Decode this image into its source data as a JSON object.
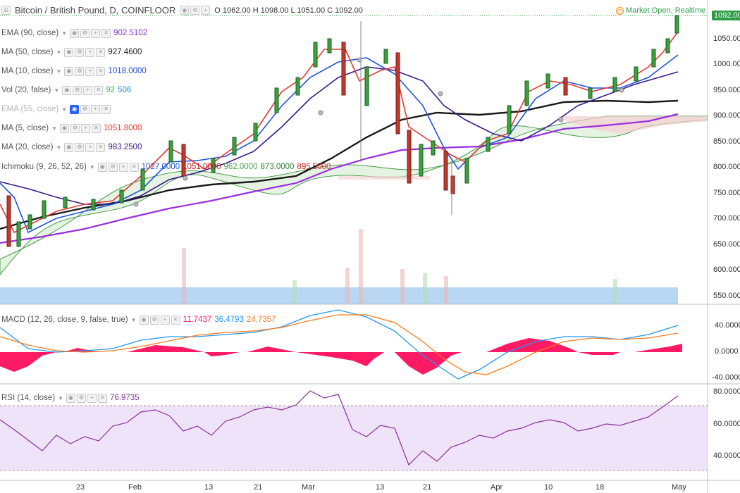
{
  "header": {
    "title": "Bitcoin / British Pound, D, COINFLOOR",
    "ohlc": "O 1062.00 H 1098.00 L 1051.00 C 1092.00"
  },
  "market_status": "Market Open, Realtime",
  "last_price": "1092.00",
  "indicators": [
    {
      "label": "EMA (90, close)",
      "value": "902.5102",
      "color": "#8b2fd6"
    },
    {
      "label": "MA (50, close)",
      "value": "927.4600",
      "color": "#222222"
    },
    {
      "label": "MA (10, close)",
      "value": "1018.0000",
      "color": "#1d4fd6"
    },
    {
      "label": "Vol (20, false)",
      "value": "92",
      "value2": "506",
      "color": "#4caf50",
      "color2": "#1e88e5"
    },
    {
      "label": "EMA (55, close)",
      "value": "",
      "color": "#aaaaaa"
    },
    {
      "label": "MA (5, close)",
      "value": "1051.8000",
      "color": "#e53935"
    },
    {
      "label": "MA (20, close)",
      "value": "983.2500",
      "color": "#3a1a8c"
    },
    {
      "label": "Ichimoku (9, 26, 52, 26)",
      "value": "1027.0000",
      "value2": "1051.0000",
      "value3": "962.0000",
      "value4": "873.0000",
      "value5": "895.5000"
    }
  ],
  "macd": {
    "label": "MACD (12, 26, close, 9, false, true)",
    "hist": "11.7437",
    "macd": "36.4793",
    "signal": "24.7357"
  },
  "rsi": {
    "label": "RSI (14, close)",
    "value": "76.9735"
  },
  "price_axis": [
    "1050.000",
    "1000.000",
    "950.000",
    "900.000",
    "850.000",
    "800.000",
    "750.000",
    "700.000",
    "650.000",
    "600.000",
    "550.000"
  ],
  "macd_axis": [
    "40.0000",
    "0.0000",
    "-40.0000"
  ],
  "rsi_axis": [
    "80.0000",
    "60.0000",
    "40.0000"
  ],
  "x_axis": [
    "23",
    "Feb",
    "13",
    "21",
    "Mar",
    "13",
    "21",
    "Apr",
    "10",
    "18",
    "May"
  ]
}
